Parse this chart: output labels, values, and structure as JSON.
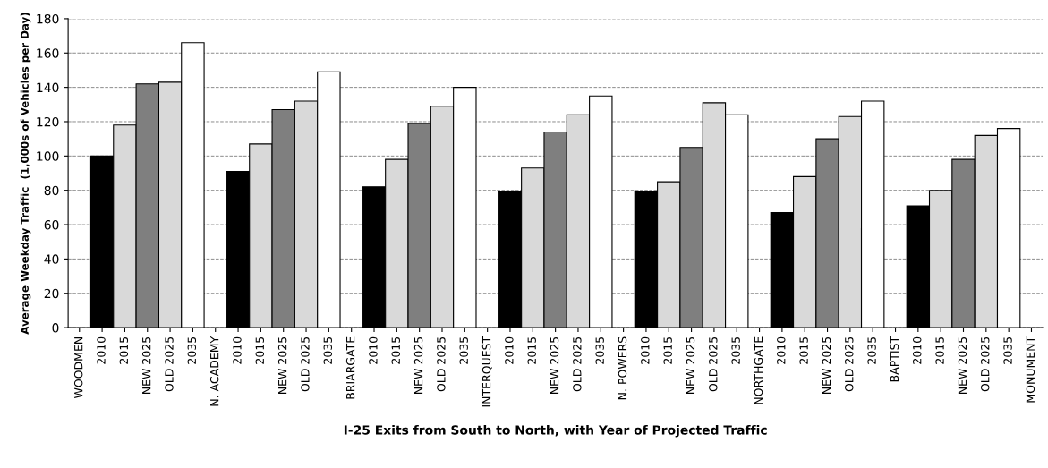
{
  "chart_data": {
    "type": "bar",
    "xlabel": "I-25 Exits from South to North, with Year of Projected Traffic",
    "ylabel": "Average Weekday Traffic  (1,000s of Vehicles per Day)",
    "categories": [
      "WOODMEN",
      "2010",
      "2015",
      "NEW 2025",
      "OLD 2025",
      "2035",
      "N. ACADEMY",
      "2010",
      "2015",
      "NEW 2025",
      "OLD 2025",
      "2035",
      "BRIARGATE",
      "2010",
      "2015",
      "NEW 2025",
      "OLD 2025",
      "2035",
      "INTERQUEST",
      "2010",
      "2015",
      "NEW 2025",
      "OLD 2025",
      "2035",
      "N. POWERS",
      "2010",
      "2015",
      "NEW 2025",
      "OLD 2025",
      "2035",
      "NORTHGATE",
      "2010",
      "2015",
      "NEW 2025",
      "OLD 2025",
      "2035",
      "BAPTIST",
      "2010",
      "2015",
      "NEW 2025",
      "OLD 2025",
      "2035",
      "MONUMENT"
    ],
    "values": [
      null,
      100,
      118,
      142,
      143,
      166,
      null,
      91,
      107,
      127,
      132,
      149,
      null,
      82,
      98,
      119,
      129,
      140,
      null,
      79,
      93,
      114,
      124,
      135,
      null,
      79,
      85,
      105,
      131,
      124,
      null,
      67,
      88,
      110,
      123,
      132,
      null,
      71,
      80,
      98,
      112,
      116,
      null
    ],
    "colors": [
      "#ffffff",
      "#000000",
      "#d9d9d9",
      "#7f7f7f",
      "#d9d9d9",
      "#ffffff",
      "#ffffff",
      "#000000",
      "#d9d9d9",
      "#7f7f7f",
      "#d9d9d9",
      "#ffffff",
      "#ffffff",
      "#000000",
      "#d9d9d9",
      "#7f7f7f",
      "#d9d9d9",
      "#ffffff",
      "#ffffff",
      "#000000",
      "#d9d9d9",
      "#7f7f7f",
      "#d9d9d9",
      "#ffffff",
      "#ffffff",
      "#000000",
      "#d9d9d9",
      "#7f7f7f",
      "#d9d9d9",
      "#ffffff",
      "#ffffff",
      "#000000",
      "#d9d9d9",
      "#7f7f7f",
      "#d9d9d9",
      "#ffffff",
      "#ffffff",
      "#000000",
      "#d9d9d9",
      "#7f7f7f",
      "#d9d9d9",
      "#ffffff",
      "#ffffff"
    ],
    "ylim": [
      0,
      180
    ],
    "yticks": [
      0,
      20,
      40,
      60,
      80,
      100,
      120,
      140,
      160,
      180
    ],
    "grid": "y"
  }
}
